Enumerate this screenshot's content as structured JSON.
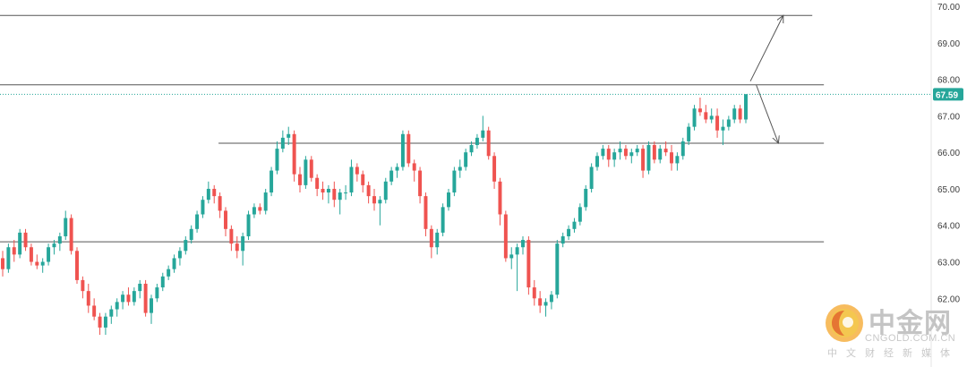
{
  "chart_data": {
    "type": "candlestick",
    "y_ticks": [
      "70.00",
      "69.00",
      "68.00",
      "67.00",
      "66.00",
      "65.00",
      "64.00",
      "63.00",
      "62.00"
    ],
    "ylim": [
      61.1,
      70.1
    ],
    "last_price": "67.59",
    "colors": {
      "up": "#26a69a",
      "down": "#ef5350",
      "line": "#555555",
      "price_tag": "#26a69a"
    },
    "horizontal_levels": [
      {
        "price": 69.75,
        "x_start": 0,
        "x_end": 0.84
      },
      {
        "price": 67.85,
        "x_start": 0,
        "x_end": 0.852
      },
      {
        "price": 66.25,
        "x_start": 0.226,
        "x_end": 0.852
      },
      {
        "price": 63.55,
        "x_start": 0,
        "x_end": 0.852
      }
    ],
    "annotations": [
      {
        "type": "arrow",
        "from": [
          0.776,
          67.95
        ],
        "to": [
          0.81,
          69.75
        ]
      },
      {
        "type": "arrow",
        "from": [
          0.782,
          67.85
        ],
        "to": [
          0.805,
          66.25
        ]
      }
    ],
    "candles": [
      [
        63.1,
        63.3,
        62.6,
        62.8
      ],
      [
        62.8,
        63.5,
        62.7,
        63.4
      ],
      [
        63.4,
        63.6,
        63.0,
        63.2
      ],
      [
        63.2,
        63.9,
        63.1,
        63.8
      ],
      [
        63.8,
        63.9,
        63.3,
        63.4
      ],
      [
        63.4,
        63.5,
        62.9,
        63.0
      ],
      [
        63.0,
        63.2,
        62.8,
        62.9
      ],
      [
        62.9,
        63.1,
        62.7,
        63.0
      ],
      [
        63.0,
        63.5,
        62.9,
        63.4
      ],
      [
        63.4,
        63.6,
        63.2,
        63.5
      ],
      [
        63.5,
        63.8,
        63.3,
        63.7
      ],
      [
        63.7,
        64.4,
        63.6,
        64.2
      ],
      [
        64.2,
        64.3,
        63.2,
        63.3
      ],
      [
        63.3,
        63.4,
        62.4,
        62.5
      ],
      [
        62.5,
        62.6,
        62.0,
        62.2
      ],
      [
        62.2,
        62.4,
        61.6,
        61.8
      ],
      [
        61.8,
        62.0,
        61.4,
        61.5
      ],
      [
        61.5,
        61.6,
        61.0,
        61.2
      ],
      [
        61.2,
        61.6,
        61.0,
        61.5
      ],
      [
        61.5,
        61.8,
        61.3,
        61.7
      ],
      [
        61.7,
        62.0,
        61.5,
        61.9
      ],
      [
        61.9,
        62.2,
        61.7,
        62.1
      ],
      [
        62.1,
        62.3,
        61.8,
        61.9
      ],
      [
        61.9,
        62.3,
        61.8,
        62.2
      ],
      [
        62.2,
        62.5,
        62.0,
        62.4
      ],
      [
        62.4,
        62.5,
        61.5,
        61.6
      ],
      [
        61.6,
        62.1,
        61.3,
        62.0
      ],
      [
        62.0,
        62.4,
        61.9,
        62.3
      ],
      [
        62.3,
        62.7,
        62.2,
        62.6
      ],
      [
        62.6,
        62.9,
        62.5,
        62.8
      ],
      [
        62.8,
        63.2,
        62.7,
        63.1
      ],
      [
        63.1,
        63.4,
        62.9,
        63.3
      ],
      [
        63.3,
        63.7,
        63.2,
        63.6
      ],
      [
        63.6,
        64.0,
        63.5,
        63.9
      ],
      [
        63.9,
        64.4,
        63.8,
        64.3
      ],
      [
        64.3,
        64.8,
        64.2,
        64.7
      ],
      [
        64.7,
        65.2,
        64.6,
        65.0
      ],
      [
        65.0,
        65.1,
        64.6,
        64.8
      ],
      [
        64.8,
        64.9,
        64.2,
        64.4
      ],
      [
        64.4,
        64.5,
        63.7,
        63.9
      ],
      [
        63.9,
        64.0,
        63.3,
        63.5
      ],
      [
        63.5,
        63.7,
        63.1,
        63.3
      ],
      [
        63.3,
        63.8,
        62.9,
        63.7
      ],
      [
        63.7,
        64.4,
        63.6,
        64.3
      ],
      [
        64.3,
        64.6,
        64.2,
        64.5
      ],
      [
        64.5,
        64.6,
        64.3,
        64.4
      ],
      [
        64.4,
        65.0,
        64.3,
        64.9
      ],
      [
        64.9,
        65.6,
        64.8,
        65.5
      ],
      [
        65.5,
        66.3,
        65.4,
        66.1
      ],
      [
        66.1,
        66.6,
        66.0,
        66.4
      ],
      [
        66.4,
        66.7,
        66.2,
        66.5
      ],
      [
        66.5,
        66.6,
        65.2,
        65.4
      ],
      [
        65.4,
        65.6,
        64.9,
        65.1
      ],
      [
        65.1,
        65.9,
        65.0,
        65.8
      ],
      [
        65.8,
        65.9,
        65.2,
        65.3
      ],
      [
        65.3,
        65.4,
        64.8,
        65.0
      ],
      [
        65.0,
        65.2,
        64.7,
        64.9
      ],
      [
        64.9,
        65.1,
        64.6,
        65.0
      ],
      [
        65.0,
        65.2,
        64.5,
        64.7
      ],
      [
        64.7,
        65.0,
        64.3,
        64.9
      ],
      [
        64.9,
        65.1,
        64.7,
        64.9
      ],
      [
        64.9,
        65.8,
        64.8,
        65.6
      ],
      [
        65.6,
        65.7,
        65.2,
        65.4
      ],
      [
        65.4,
        65.5,
        64.9,
        65.1
      ],
      [
        65.1,
        65.2,
        64.6,
        64.8
      ],
      [
        64.8,
        65.0,
        64.4,
        64.6
      ],
      [
        64.6,
        64.8,
        64.0,
        64.7
      ],
      [
        64.7,
        65.3,
        64.6,
        65.2
      ],
      [
        65.2,
        65.6,
        65.1,
        65.5
      ],
      [
        65.5,
        65.7,
        65.3,
        65.6
      ],
      [
        65.6,
        66.6,
        65.5,
        66.5
      ],
      [
        66.5,
        66.6,
        65.6,
        65.7
      ],
      [
        65.7,
        65.8,
        65.2,
        65.5
      ],
      [
        65.5,
        65.6,
        64.6,
        64.8
      ],
      [
        64.8,
        64.9,
        63.7,
        63.9
      ],
      [
        63.9,
        64.0,
        63.1,
        63.4
      ],
      [
        63.4,
        63.9,
        63.2,
        63.8
      ],
      [
        63.8,
        64.6,
        63.7,
        64.5
      ],
      [
        64.5,
        65.0,
        64.4,
        64.9
      ],
      [
        64.9,
        65.6,
        64.8,
        65.5
      ],
      [
        65.5,
        65.8,
        65.3,
        65.6
      ],
      [
        65.6,
        66.1,
        65.5,
        66.0
      ],
      [
        66.0,
        66.3,
        65.9,
        66.2
      ],
      [
        66.2,
        66.5,
        66.1,
        66.4
      ],
      [
        66.4,
        67.0,
        66.3,
        66.6
      ],
      [
        66.6,
        66.7,
        65.8,
        65.9
      ],
      [
        65.9,
        66.0,
        65.0,
        65.2
      ],
      [
        65.2,
        65.3,
        64.0,
        64.3
      ],
      [
        64.3,
        64.4,
        63.0,
        63.1
      ],
      [
        63.1,
        63.4,
        62.8,
        63.2
      ],
      [
        63.2,
        63.5,
        62.2,
        63.4
      ],
      [
        63.4,
        63.7,
        63.2,
        63.6
      ],
      [
        63.6,
        63.7,
        62.1,
        62.3
      ],
      [
        62.3,
        62.5,
        61.8,
        62.0
      ],
      [
        62.0,
        62.2,
        61.6,
        61.8
      ],
      [
        61.8,
        62.0,
        61.5,
        61.9
      ],
      [
        61.9,
        62.2,
        61.7,
        62.1
      ],
      [
        62.1,
        63.6,
        62.0,
        63.5
      ],
      [
        63.5,
        63.8,
        63.4,
        63.7
      ],
      [
        63.7,
        64.0,
        63.6,
        63.9
      ],
      [
        63.9,
        64.2,
        63.8,
        64.1
      ],
      [
        64.1,
        64.6,
        64.0,
        64.5
      ],
      [
        64.5,
        65.1,
        64.4,
        65.0
      ],
      [
        65.0,
        65.7,
        64.9,
        65.6
      ],
      [
        65.6,
        66.0,
        65.5,
        65.9
      ],
      [
        65.9,
        66.2,
        65.8,
        66.1
      ],
      [
        66.1,
        66.2,
        65.6,
        65.8
      ],
      [
        65.8,
        66.1,
        65.6,
        66.0
      ],
      [
        66.0,
        66.3,
        65.8,
        66.1
      ],
      [
        66.1,
        66.2,
        65.8,
        65.9
      ],
      [
        65.9,
        66.1,
        65.7,
        66.0
      ],
      [
        66.0,
        66.2,
        65.9,
        66.1
      ],
      [
        66.1,
        66.2,
        65.3,
        65.5
      ],
      [
        65.5,
        66.3,
        65.4,
        66.2
      ],
      [
        66.2,
        66.3,
        65.7,
        65.8
      ],
      [
        65.8,
        66.2,
        65.7,
        66.1
      ],
      [
        66.1,
        66.3,
        65.9,
        66.0
      ],
      [
        66.0,
        66.2,
        65.5,
        65.7
      ],
      [
        65.7,
        66.0,
        65.5,
        65.9
      ],
      [
        65.9,
        66.4,
        65.8,
        66.3
      ],
      [
        66.3,
        66.8,
        66.2,
        66.7
      ],
      [
        66.7,
        67.3,
        66.6,
        67.2
      ],
      [
        67.2,
        67.5,
        67.0,
        67.1
      ],
      [
        67.1,
        67.3,
        66.8,
        66.9
      ],
      [
        66.9,
        67.2,
        66.8,
        67.0
      ],
      [
        67.0,
        67.2,
        66.4,
        66.6
      ],
      [
        66.6,
        66.9,
        66.2,
        66.7
      ],
      [
        66.7,
        67.0,
        66.6,
        66.9
      ],
      [
        66.9,
        67.3,
        66.8,
        67.2
      ],
      [
        67.2,
        67.3,
        66.8,
        66.9
      ],
      [
        66.9,
        67.6,
        66.8,
        67.59
      ]
    ]
  },
  "watermark": {
    "title": "中金网",
    "domain": "CNGOLD.COM.CN",
    "subtitle": "中文财经新媒体"
  }
}
